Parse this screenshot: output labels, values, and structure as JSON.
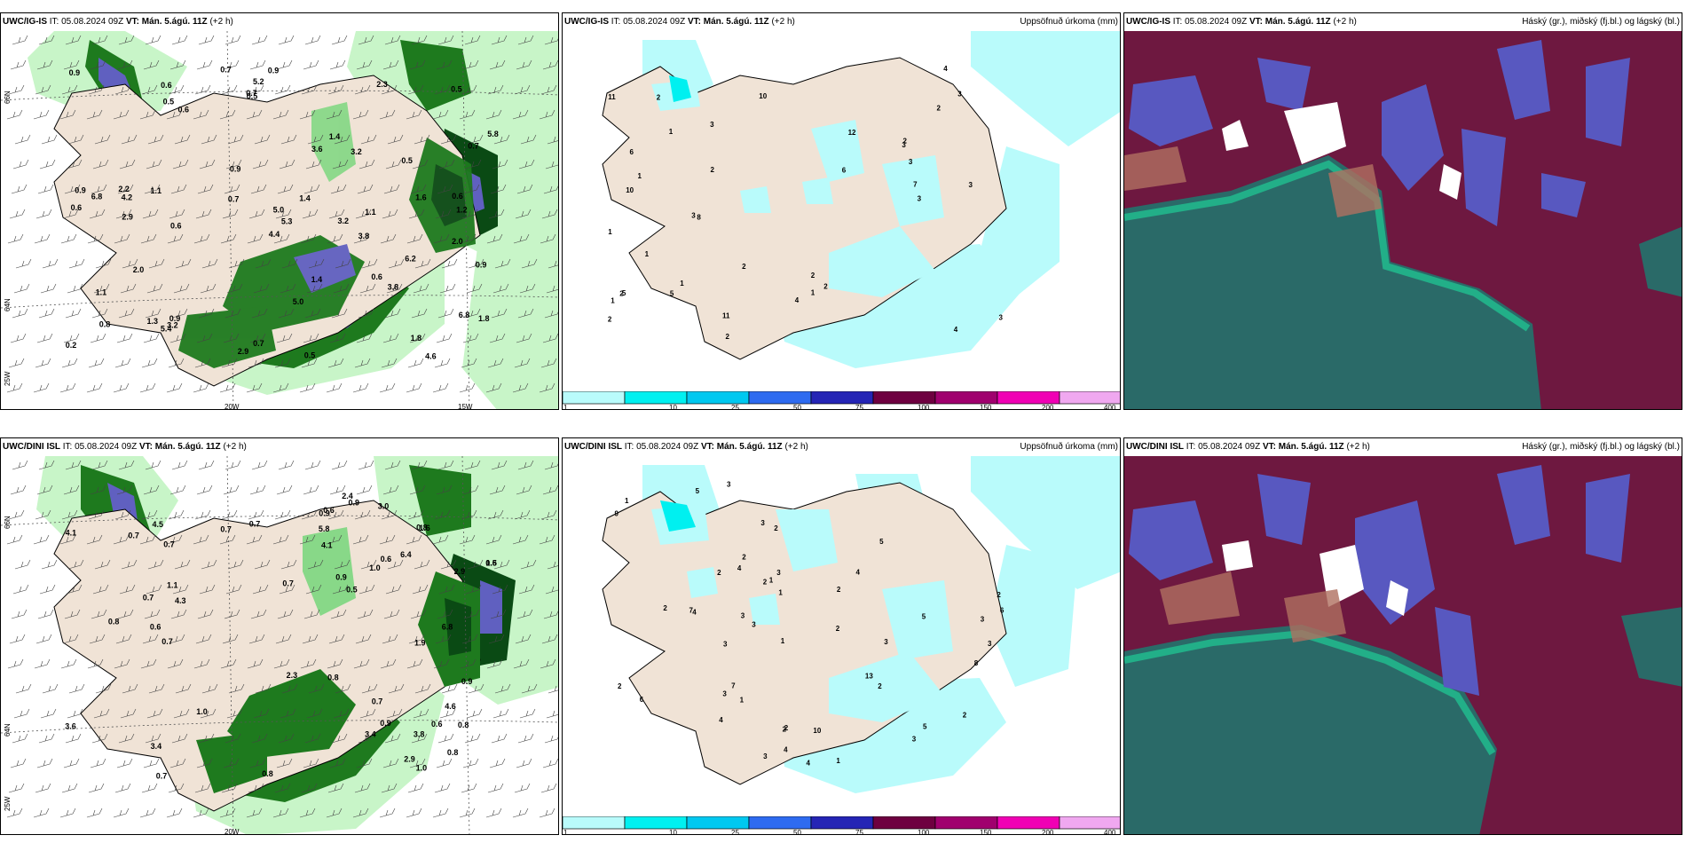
{
  "panels": [
    {
      "model": "UWC/IG-IS",
      "it_label": "IT:",
      "it": "05.08.2024 09Z",
      "vt_label": "VT:",
      "vt": "Mán. 5.ágú. 11Z",
      "offset": "(+2 h)",
      "title": "",
      "type": "wind"
    },
    {
      "model": "UWC/IG-IS",
      "it_label": "IT:",
      "it": "05.08.2024 09Z",
      "vt_label": "VT:",
      "vt": "Mán. 5.ágú. 11Z",
      "offset": "(+2 h)",
      "title": "Uppsöfnuð úrkoma (mm)",
      "type": "precip"
    },
    {
      "model": "UWC/IG-IS",
      "it_label": "IT:",
      "it": "05.08.2024 09Z",
      "vt_label": "VT:",
      "vt": "Mán. 5.ágú. 11Z",
      "offset": "(+2 h)",
      "title": "Háský (gr.), miðský (fj.bl.) og lágský (bl.)",
      "type": "cloud"
    },
    {
      "model": "UWC/DINI ISL",
      "it_label": "IT:",
      "it": "05.08.2024 09Z",
      "vt_label": "VT:",
      "vt": "Mán. 5.ágú. 11Z",
      "offset": "(+2 h)",
      "title": "",
      "type": "wind"
    },
    {
      "model": "UWC/DINI ISL",
      "it_label": "IT:",
      "it": "05.08.2024 09Z",
      "vt_label": "VT:",
      "vt": "Mán. 5.ágú. 11Z",
      "offset": "(+2 h)",
      "title": "Uppsöfnuð úrkoma (mm)",
      "type": "precip"
    },
    {
      "model": "UWC/DINI ISL",
      "it_label": "IT:",
      "it": "05.08.2024 09Z",
      "vt_label": "VT:",
      "vt": "Mán. 5.ágú. 11Z",
      "offset": "(+2 h)",
      "title": "Háský (gr.), miðský (fj.bl.) og lágský (bl.)",
      "type": "cloud"
    }
  ],
  "grid_labels": {
    "lat_66": "66N",
    "lat_64": "64N",
    "lon_20": "20W",
    "lon_15": "15W",
    "lon_25": "25W"
  },
  "legend": {
    "ticks": [
      "1",
      "10",
      "25",
      "50",
      "75",
      "100",
      "150",
      "200",
      "400"
    ],
    "colors": [
      "#b9fbfb",
      "#00f0f0",
      "#00c8f0",
      "#2e6bf0",
      "#2525b5",
      "#6e0040",
      "#a0006e",
      "#f000b4",
      "#f0a8f0"
    ]
  },
  "colors": {
    "land": "#f0e3d6",
    "green_light": "#c8f5c8",
    "green_mid": "#88d888",
    "green_dark": "#1e7a1e",
    "green_darkest": "#0a4a14",
    "purple": "#6060c0",
    "precip_light": "#b9fbfb",
    "cloud_high": "#6e1840",
    "cloud_mid": "#5858c0",
    "cloud_low": "#2a6a68",
    "cloud_teal": "#20c090"
  },
  "panel1_values": [
    "6.8",
    "6.8",
    "6.2",
    "1.4",
    "0.7",
    "0.5",
    "0.9",
    "0.7",
    "0.2",
    "0.5",
    "0.9",
    "0.7",
    "0.6",
    "1.2",
    "0.9",
    "0.7",
    "0.6",
    "0.9",
    "3.2",
    "2.0",
    "3.2",
    "2.0",
    "4.2",
    "2.9",
    "4.4",
    "5.0",
    "5.4",
    "2.2",
    "3.6",
    "3.2",
    "1.8",
    "0.6",
    "0.5",
    "1.4",
    "1.8",
    "0.8",
    "2.9",
    "1.6",
    "2.3",
    "0.6",
    "0.7",
    "1.1",
    "0.9",
    "0.9",
    "1.1",
    "0.6",
    "1.1",
    "1.4",
    "0.5",
    "0.6",
    "1.3",
    "5.0",
    "3.8",
    "0.5",
    "4.6",
    "3.8",
    "5.2",
    "5.8",
    "5.3"
  ],
  "panel2_values": [
    "1",
    "1",
    "2",
    "2",
    "7",
    "12",
    "5",
    "2",
    "2",
    "2",
    "6",
    "1",
    "2",
    "1",
    "1",
    "5",
    "3",
    "3",
    "3",
    "3",
    "3",
    "1",
    "3",
    "11",
    "11",
    "4",
    "4",
    "4",
    "3",
    "10",
    "10",
    "8",
    "1",
    "2",
    "2",
    "3",
    "6",
    "2",
    "2"
  ],
  "panel4_values": [
    "0.7",
    "0.8",
    "0.9",
    "6.4",
    "1.9",
    "6.8",
    "5.8",
    "1.1",
    "0.7",
    "0.6",
    "0.8",
    "2.3",
    "0.8",
    "0.6",
    "0.7",
    "1.0",
    "0.9",
    "1.0",
    "0.7",
    "0.8",
    "0.5",
    "0.9",
    "0.6",
    "0.7",
    "0.7",
    "3.4",
    "4.5",
    "4.1",
    "3.0",
    "4.3",
    "2.9",
    "0.6",
    "0.9",
    "0.7",
    "0.8",
    "0.9",
    "1.0",
    "0.8",
    "4.6",
    "3.6",
    "3.4",
    "2.9",
    "3.8",
    "4.1",
    "2.4",
    "0.7",
    "0.6",
    "0.7",
    "1.6",
    "1.5"
  ],
  "panel5_values": [
    "2",
    "2",
    "4",
    "1",
    "3",
    "3",
    "13",
    "10",
    "1",
    "1",
    "2",
    "3",
    "3",
    "2",
    "2",
    "4",
    "5",
    "9",
    "8",
    "7",
    "6",
    "5",
    "4",
    "3",
    "2",
    "2",
    "1",
    "3",
    "3",
    "1",
    "2",
    "3",
    "2",
    "2",
    "3",
    "3",
    "6",
    "4",
    "5",
    "2",
    "2",
    "2",
    "3",
    "5",
    "7",
    "1",
    "4",
    "4",
    "3"
  ]
}
